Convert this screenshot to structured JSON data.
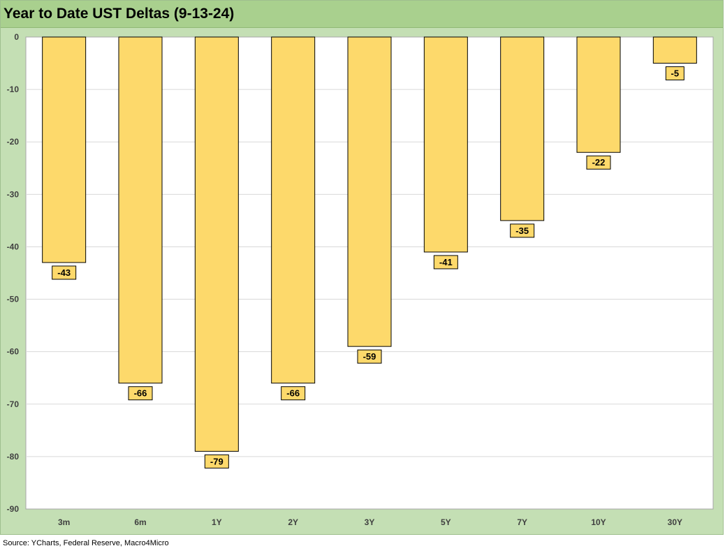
{
  "title": "Year to Date UST Deltas (9-13-24)",
  "source": "Source: YCharts, Federal Reserve, Macro4Micro",
  "colors": {
    "bar_fill": "#fdd96b",
    "bar_stroke": "#000000",
    "label_fill": "#fdd96b",
    "title_bar": "#a9d08e",
    "frame": "#c4dfb4",
    "plot_bg": "#ffffff",
    "grid": "#d9d9d9"
  },
  "chart_data": {
    "type": "bar",
    "title": "Year to Date UST Deltas (9-13-24)",
    "categories": [
      "3m",
      "6m",
      "1Y",
      "2Y",
      "3Y",
      "5Y",
      "7Y",
      "10Y",
      "30Y"
    ],
    "values": [
      -43,
      -66,
      -79,
      -66,
      -59,
      -41,
      -35,
      -22,
      -5
    ],
    "data_labels": [
      "-43",
      "-66",
      "-79",
      "-66",
      "-59",
      "-41",
      "-35",
      "-22",
      "-5"
    ],
    "ylim": [
      -90,
      0
    ],
    "yticks": [
      0,
      -10,
      -20,
      -30,
      -40,
      -50,
      -60,
      -70,
      -80,
      -90
    ],
    "ytick_labels": [
      "0",
      "-10",
      "-20",
      "-30",
      "-40",
      "-50",
      "-60",
      "-70",
      "-80",
      "-90"
    ],
    "xlabel": "",
    "ylabel": "",
    "grid": true,
    "legend": false
  }
}
